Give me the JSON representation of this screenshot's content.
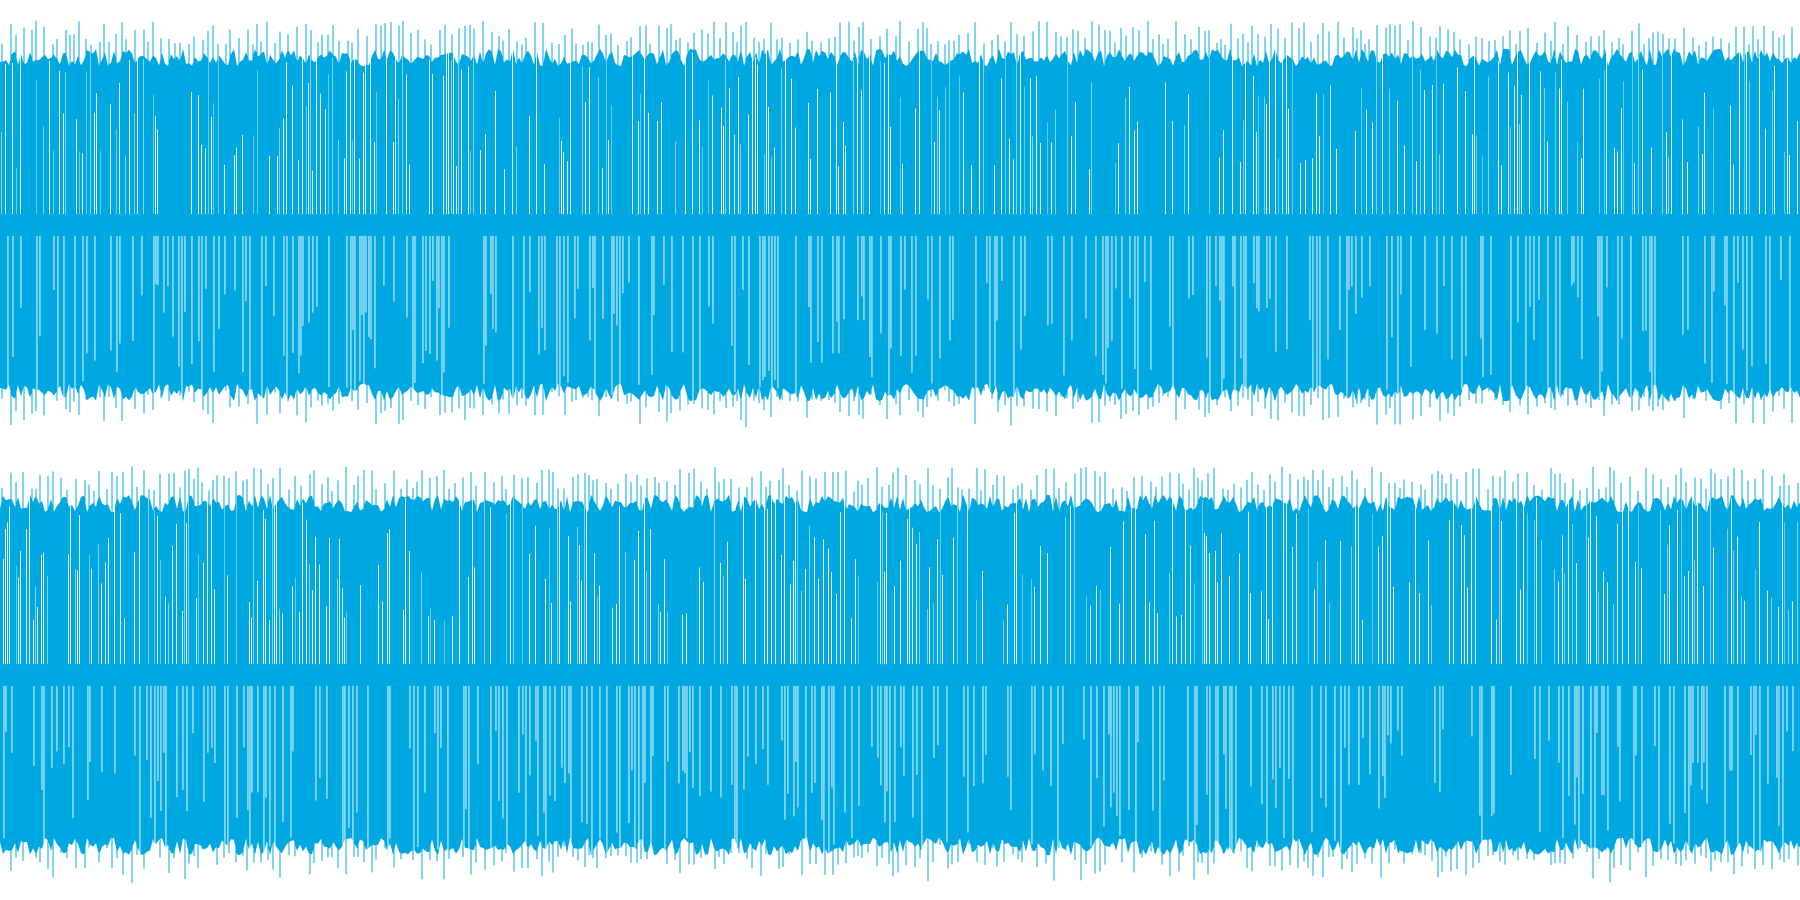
{
  "waveform": {
    "color": "#00A8E1",
    "background": "#FFFFFF",
    "channel_count": 2,
    "channels": [
      {
        "name": "",
        "peak_amplitude": 0.95,
        "body_amplitude": 0.82,
        "center_band_amplitude": 0.05,
        "seed": 11
      },
      {
        "name": "",
        "peak_amplitude": 0.97,
        "body_amplitude": 0.84,
        "center_band_amplitude": 0.05,
        "seed": 29
      }
    ]
  }
}
